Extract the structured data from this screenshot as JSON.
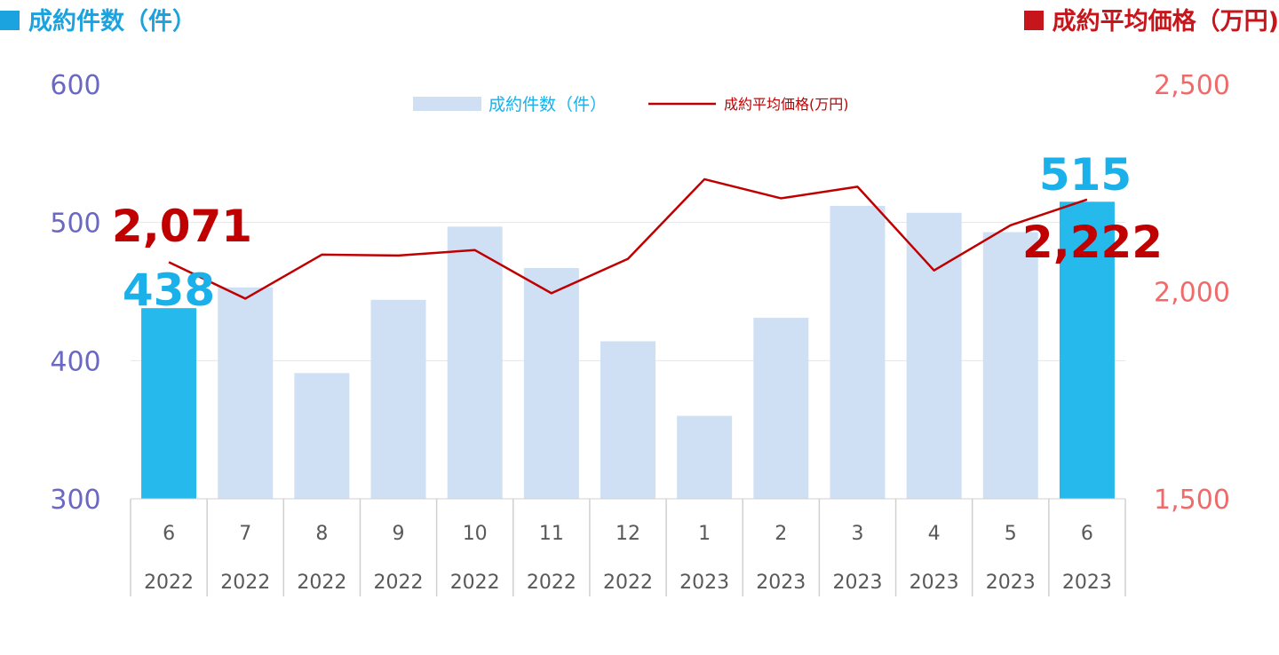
{
  "header": {
    "left_title": "成約件数（件）",
    "right_title": "成約平均価格（万円)"
  },
  "colors": {
    "bar": "#cfe0f4",
    "bar_highlight": "#25b9ec",
    "line": "#c00000",
    "left_axis": "#6b68c2",
    "right_axis": "#f06a6a",
    "count_label": "#1ab0ea",
    "price_label": "#c00000"
  },
  "chart_data": {
    "type": "bar",
    "categories": [
      [
        "6",
        "2022"
      ],
      [
        "7",
        "2022"
      ],
      [
        "8",
        "2022"
      ],
      [
        "9",
        "2022"
      ],
      [
        "10",
        "2022"
      ],
      [
        "11",
        "2022"
      ],
      [
        "12",
        "2022"
      ],
      [
        "1",
        "2023"
      ],
      [
        "2",
        "2023"
      ],
      [
        "3",
        "2023"
      ],
      [
        "4",
        "2023"
      ],
      [
        "5",
        "2023"
      ],
      [
        "6",
        "2023"
      ]
    ],
    "series": [
      {
        "name": "成約件数（件）",
        "type": "bar",
        "axis": "left",
        "values": [
          438,
          453,
          391,
          444,
          497,
          467,
          414,
          360,
          431,
          512,
          507,
          493,
          515
        ]
      },
      {
        "name": "成約平均価格(万円)",
        "type": "line",
        "axis": "right",
        "values": [
          2071,
          1983,
          2089,
          2087,
          2100,
          1996,
          2079,
          2271,
          2225,
          2253,
          2051,
          2160,
          2222
        ]
      }
    ],
    "left_axis": {
      "min": 300,
      "max": 600,
      "ticks": [
        "600",
        "500",
        "400",
        "300"
      ]
    },
    "right_axis": {
      "min": 1500,
      "max": 2500,
      "ticks": [
        "2,500",
        "2,000",
        "1,500"
      ]
    },
    "highlight": [
      0,
      12
    ],
    "annotations": {
      "first_count": "438",
      "first_price": "2,071",
      "last_count": "515",
      "last_price": "2,222"
    },
    "legend": [
      "成約件数（件）",
      "成約平均価格(万円)"
    ],
    "legend_position": "top-center",
    "grid": true
  }
}
